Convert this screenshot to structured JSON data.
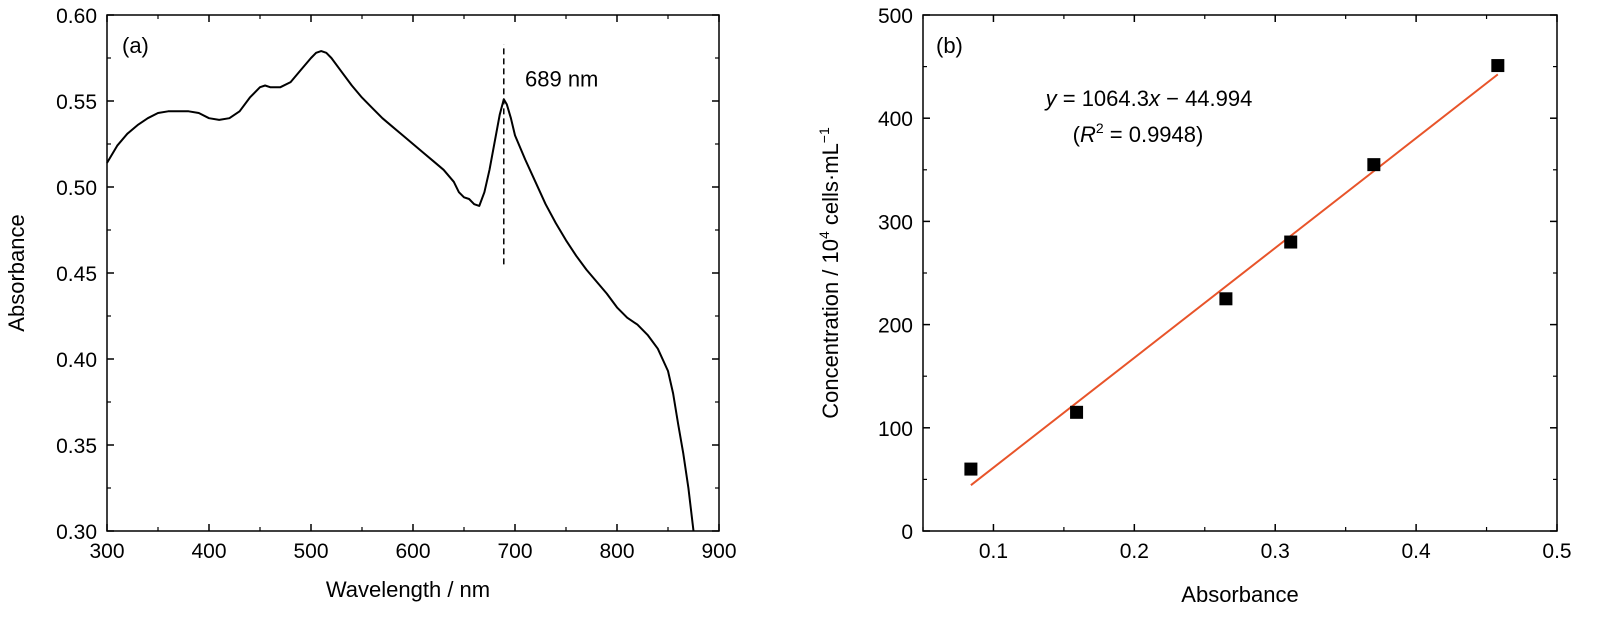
{
  "chart_data": [
    {
      "id": "a",
      "type": "line",
      "panel_label": "(a)",
      "xlabel": "Wavelength / nm",
      "ylabel": "Absorbance",
      "xlim": [
        300,
        900
      ],
      "ylim": [
        0.3,
        0.6
      ],
      "xticks": [
        300,
        400,
        500,
        600,
        700,
        800,
        900
      ],
      "yticks": [
        0.3,
        0.35,
        0.4,
        0.45,
        0.5,
        0.55,
        0.6
      ],
      "ytick_labels": [
        "0.30",
        "0.35",
        "0.40",
        "0.45",
        "0.50",
        "0.55",
        "0.60"
      ],
      "grid": false,
      "series": [
        {
          "color": "#000000",
          "x": [
            300,
            310,
            320,
            330,
            340,
            350,
            360,
            370,
            380,
            390,
            400,
            410,
            420,
            430,
            440,
            450,
            455,
            460,
            470,
            480,
            490,
            500,
            505,
            510,
            515,
            520,
            530,
            540,
            550,
            560,
            570,
            580,
            590,
            600,
            610,
            620,
            630,
            640,
            645,
            650,
            655,
            660,
            665,
            670,
            675,
            680,
            685,
            689,
            692,
            696,
            700,
            710,
            720,
            730,
            740,
            750,
            760,
            770,
            780,
            790,
            800,
            810,
            820,
            830,
            840,
            850,
            855,
            860,
            865,
            870,
            875
          ],
          "y": [
            0.514,
            0.524,
            0.531,
            0.536,
            0.54,
            0.543,
            0.544,
            0.544,
            0.544,
            0.543,
            0.54,
            0.539,
            0.54,
            0.544,
            0.552,
            0.558,
            0.559,
            0.558,
            0.558,
            0.561,
            0.568,
            0.575,
            0.578,
            0.579,
            0.578,
            0.575,
            0.567,
            0.559,
            0.552,
            0.546,
            0.54,
            0.535,
            0.53,
            0.525,
            0.52,
            0.515,
            0.51,
            0.503,
            0.497,
            0.494,
            0.493,
            0.49,
            0.489,
            0.497,
            0.51,
            0.526,
            0.542,
            0.551,
            0.548,
            0.54,
            0.53,
            0.516,
            0.503,
            0.49,
            0.479,
            0.469,
            0.46,
            0.452,
            0.445,
            0.438,
            0.43,
            0.424,
            0.42,
            0.414,
            0.406,
            0.393,
            0.38,
            0.362,
            0.345,
            0.325,
            0.3
          ]
        }
      ],
      "vline": {
        "x": 689,
        "y_from": 0.455,
        "y_to": 0.583,
        "style": "dashed"
      },
      "annotation": {
        "text": "689 nm",
        "x": 700,
        "y": 0.563
      }
    },
    {
      "id": "b",
      "type": "scatter",
      "panel_label": "(b)",
      "xlabel": "Absorbance",
      "ylabel": "Concentration / 10",
      "ylabel_sup": "4",
      "ylabel_tail": " cells·mL",
      "ylabel_sup2": "−1",
      "xlim": [
        0.05,
        0.5
      ],
      "ylim": [
        0,
        500
      ],
      "xticks": [
        0.1,
        0.2,
        0.3,
        0.4,
        0.5
      ],
      "yticks": [
        0,
        100,
        200,
        300,
        400,
        500
      ],
      "grid": false,
      "series": [
        {
          "color": "#000000",
          "marker": "square",
          "x": [
            0.084,
            0.159,
            0.265,
            0.311,
            0.37,
            0.458
          ],
          "y": [
            60,
            115,
            225,
            280,
            355,
            451
          ]
        }
      ],
      "fit": {
        "color": "#e8542a",
        "slope": 1064.3,
        "intercept": -44.994,
        "x_range": [
          0.084,
          0.458
        ]
      },
      "equation": {
        "y_var": "y",
        "eq_body": " = 1064.3",
        "x_var": "x",
        "eq_tail": " − 44.994",
        "r_open": "(",
        "r_var": "R",
        "r_sup": "2",
        "r_tail": " = 0.9948)"
      }
    }
  ]
}
